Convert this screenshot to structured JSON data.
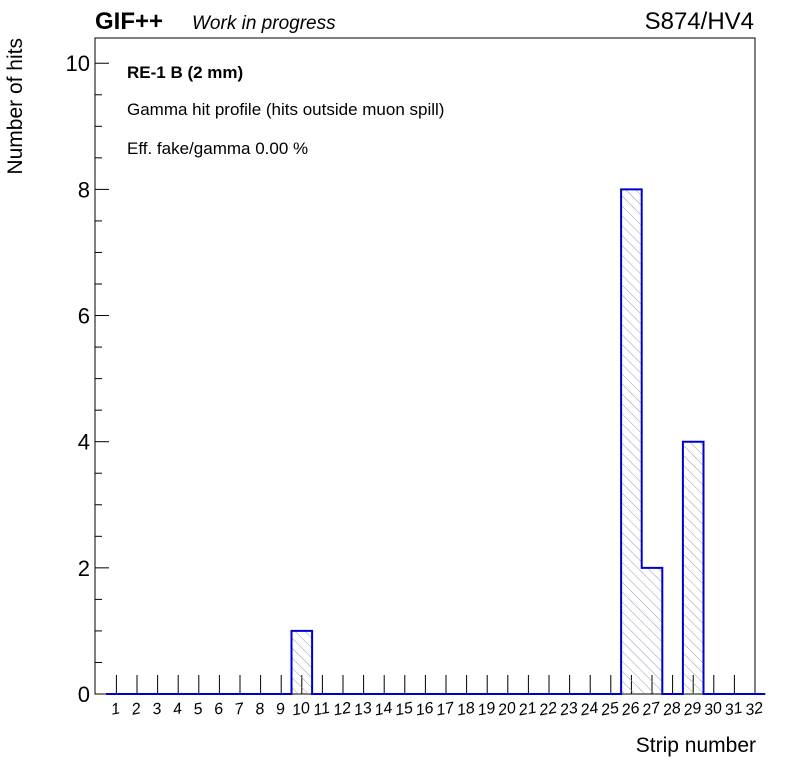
{
  "header": {
    "experiment": "GIF++",
    "status": "Work in progress",
    "run_label": "S874/HV4"
  },
  "annotations": [
    "RE-1 B (2 mm)",
    "Gamma hit profile (hits outside muon spill)",
    "Eff. fake/gamma 0.00 %"
  ],
  "chart_data": {
    "type": "bar",
    "subtype": "histogram",
    "xlabel": "Strip number",
    "ylabel": "Number of hits",
    "categories": [
      "1",
      "2",
      "3",
      "4",
      "5",
      "6",
      "7",
      "8",
      "9",
      "10",
      "11",
      "12",
      "13",
      "14",
      "15",
      "16",
      "17",
      "18",
      "19",
      "20",
      "21",
      "22",
      "23",
      "24",
      "25",
      "26",
      "27",
      "28",
      "29",
      "30",
      "31",
      "32"
    ],
    "values": [
      0,
      0,
      0,
      0,
      0,
      0,
      0,
      0,
      0,
      1,
      0,
      0,
      0,
      0,
      0,
      0,
      0,
      0,
      0,
      0,
      0,
      0,
      0,
      0,
      0,
      8,
      2,
      0,
      4,
      0,
      0,
      0
    ],
    "ylim": [
      0,
      10.4
    ],
    "yticks": [
      0,
      2,
      4,
      6,
      8,
      10
    ],
    "grid": false,
    "legend": "none",
    "colors": {
      "line": "#0000cc",
      "hatch": "#9a9ab0"
    }
  }
}
